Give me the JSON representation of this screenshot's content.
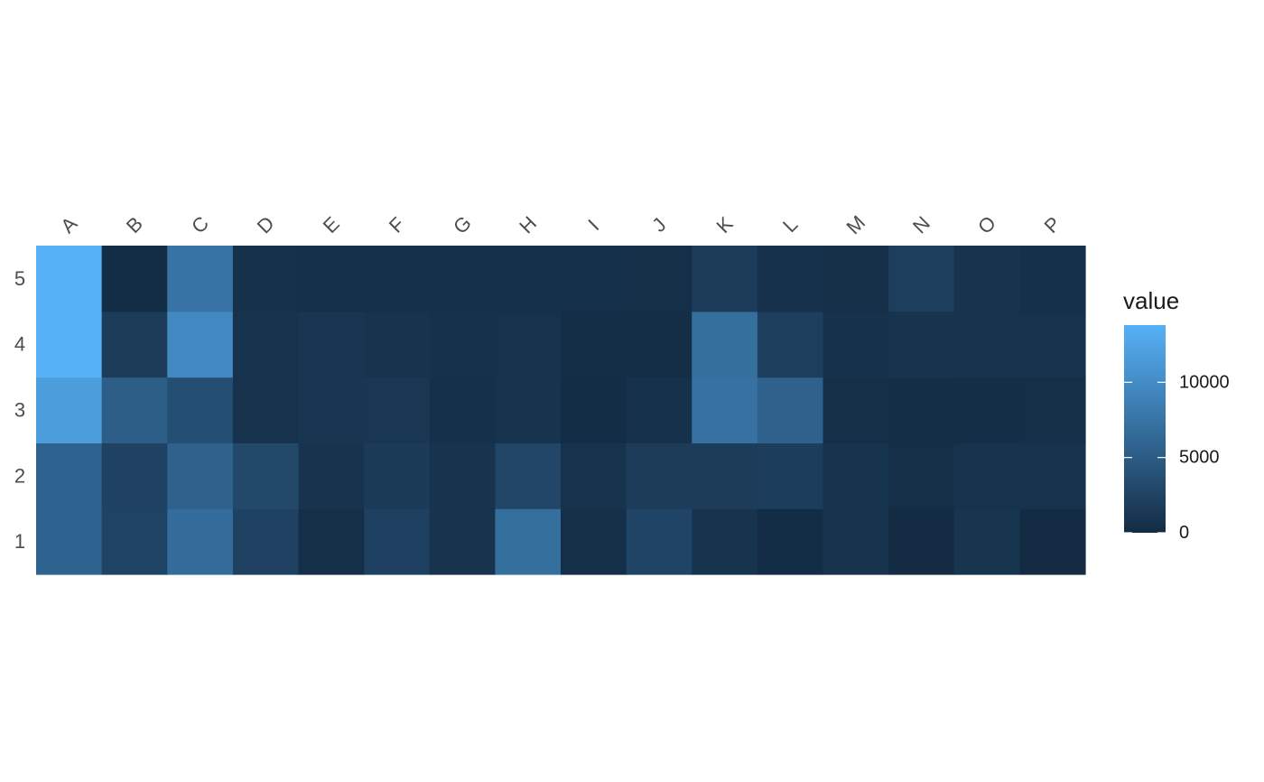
{
  "chart_data": {
    "type": "heatmap",
    "x_categories": [
      "A",
      "B",
      "C",
      "D",
      "E",
      "F",
      "G",
      "H",
      "I",
      "J",
      "K",
      "L",
      "M",
      "N",
      "O",
      "P"
    ],
    "y_categories": [
      "1",
      "2",
      "3",
      "4",
      "5"
    ],
    "values": [
      [
        5800,
        2500,
        6800,
        2400,
        400,
        2300,
        800,
        7000,
        400,
        2600,
        900,
        200,
        800,
        0,
        1000,
        100
      ],
      [
        5800,
        2400,
        5600,
        3000,
        800,
        1600,
        800,
        2800,
        700,
        1800,
        1800,
        1900,
        900,
        400,
        700,
        700
      ],
      [
        11800,
        5300,
        3600,
        700,
        1100,
        1200,
        500,
        900,
        200,
        600,
        7200,
        5600,
        400,
        300,
        300,
        400
      ],
      [
        13800,
        1800,
        9700,
        700,
        1100,
        800,
        600,
        700,
        300,
        300,
        7000,
        2000,
        600,
        800,
        700,
        700
      ],
      [
        13800,
        200,
        7500,
        600,
        500,
        500,
        500,
        500,
        500,
        400,
        1800,
        600,
        400,
        2000,
        800,
        500
      ]
    ],
    "xlabel": "",
    "ylabel": "",
    "x_axis_position": "top",
    "grid": false,
    "legend": {
      "title": "value",
      "position": "right",
      "breaks": [
        0,
        5000,
        10000
      ],
      "range": [
        0,
        13800
      ],
      "low_color": "#132B43",
      "high_color": "#56B1F7"
    }
  }
}
